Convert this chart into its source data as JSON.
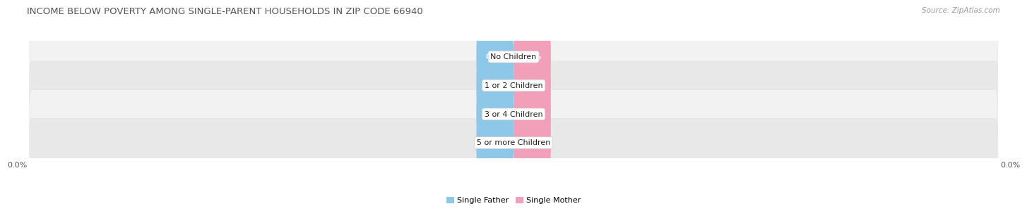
{
  "title": "INCOME BELOW POVERTY AMONG SINGLE-PARENT HOUSEHOLDS IN ZIP CODE 66940",
  "source": "Source: ZipAtlas.com",
  "categories": [
    "No Children",
    "1 or 2 Children",
    "3 or 4 Children",
    "5 or more Children"
  ],
  "single_father_values": [
    0.0,
    0.0,
    0.0,
    0.0
  ],
  "single_mother_values": [
    0.0,
    0.0,
    0.0,
    0.0
  ],
  "father_color": "#8EC8E8",
  "mother_color": "#F2A0BA",
  "row_bg_light": "#F2F2F2",
  "row_bg_dark": "#E8E8E8",
  "row_border_color": "#DDDDDD",
  "title_fontsize": 9.5,
  "source_fontsize": 7.5,
  "label_fontsize": 7,
  "category_fontsize": 8,
  "legend_fontsize": 8,
  "background_color": "#FFFFFF",
  "axis_label_left": "0.0%",
  "axis_label_right": "0.0%"
}
